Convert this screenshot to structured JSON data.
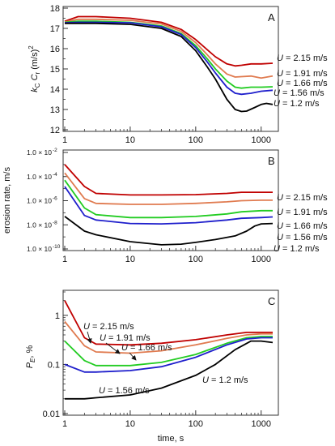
{
  "chart_data": [
    {
      "type": "line",
      "panel_label": "A",
      "ylabel": "k_c C_r (m/s)^2",
      "x_scale": "log",
      "xlim": [
        1,
        2000
      ],
      "ylim": [
        12,
        18
      ],
      "yticks": [
        12,
        13,
        14,
        15,
        16,
        17,
        18
      ],
      "series": [
        {
          "name": "U = 2.15 m/s",
          "color": "#c00000",
          "x": [
            1,
            1.6,
            3,
            10,
            30,
            60,
            100,
            150,
            200,
            300,
            400,
            500,
            700,
            1000,
            1500
          ],
          "y": [
            17.35,
            17.58,
            17.58,
            17.5,
            17.3,
            16.95,
            16.45,
            15.95,
            15.6,
            15.25,
            15.15,
            15.18,
            15.25,
            15.25,
            15.28
          ]
        },
        {
          "name": "U = 1.91 m/s",
          "color": "#e07b50",
          "x": [
            1,
            1.6,
            3,
            10,
            30,
            60,
            100,
            150,
            200,
            300,
            400,
            500,
            700,
            1000,
            1500
          ],
          "y": [
            17.32,
            17.45,
            17.45,
            17.4,
            17.22,
            16.85,
            16.3,
            15.7,
            15.25,
            14.75,
            14.6,
            14.62,
            14.65,
            14.55,
            14.65
          ]
        },
        {
          "name": "U = 1.66 m/s",
          "color": "#22cc22",
          "x": [
            1,
            1.6,
            3,
            10,
            30,
            60,
            100,
            150,
            200,
            300,
            400,
            500,
            700,
            1000,
            1500
          ],
          "y": [
            17.3,
            17.35,
            17.35,
            17.3,
            17.12,
            16.75,
            16.15,
            15.5,
            15.0,
            14.4,
            14.1,
            14.05,
            14.1,
            14.1,
            14.12
          ]
        },
        {
          "name": "U = 1.56 m/s",
          "color": "#1f1fcc",
          "x": [
            1,
            1.6,
            3,
            10,
            30,
            60,
            100,
            150,
            200,
            300,
            400,
            500,
            700,
            1000,
            1500
          ],
          "y": [
            17.28,
            17.3,
            17.3,
            17.28,
            17.08,
            16.7,
            16.05,
            15.35,
            14.8,
            14.1,
            13.8,
            13.75,
            13.8,
            13.9,
            13.95
          ]
        },
        {
          "name": "U = 1.2 m/s",
          "color": "#000000",
          "x": [
            1,
            1.6,
            3,
            10,
            30,
            60,
            100,
            150,
            200,
            300,
            400,
            500,
            600,
            800,
            1000,
            1200,
            1500
          ],
          "y": [
            17.25,
            17.25,
            17.25,
            17.2,
            17.0,
            16.6,
            15.9,
            15.1,
            14.5,
            13.5,
            13.0,
            12.9,
            12.92,
            13.1,
            13.25,
            13.3,
            13.25
          ]
        }
      ]
    },
    {
      "type": "line",
      "panel_label": "B",
      "ylabel": "erosion rate, m/s",
      "x_scale": "log",
      "y_scale": "log",
      "xlim": [
        1,
        2000
      ],
      "ylim": [
        1e-10,
        0.01
      ],
      "ytick_labels": [
        "1.0 × 10",
        "1.0 × 10",
        "1.0 × 10",
        "1.0 × 10",
        "1.0 × 10"
      ],
      "ytick_exponents": [
        "-10",
        "-8",
        "-6",
        "-4",
        "-2"
      ],
      "series": [
        {
          "name": "U = 2.15 m/s",
          "color": "#c00000",
          "x": [
            1,
            2,
            3,
            10,
            30,
            100,
            300,
            500,
            1000,
            1500
          ],
          "y": [
            0.001,
            1.5e-05,
            4e-06,
            3e-06,
            3e-06,
            3.2e-06,
            4e-06,
            5e-06,
            5e-06,
            5e-06
          ]
        },
        {
          "name": "U = 1.91 m/s",
          "color": "#e07b50",
          "x": [
            1,
            2,
            3,
            10,
            30,
            100,
            300,
            500,
            1000,
            1500
          ],
          "y": [
            0.0002,
            1.5e-06,
            6e-07,
            5e-07,
            5e-07,
            6e-07,
            8e-07,
            1e-06,
            1.1e-06,
            1.1e-06
          ]
        },
        {
          "name": "U = 1.66 m/s",
          "color": "#22cc22",
          "x": [
            1,
            2,
            3,
            10,
            30,
            100,
            300,
            500,
            1000,
            1500
          ],
          "y": [
            5e-05,
            2.5e-07,
            7e-08,
            4e-08,
            4e-08,
            5e-08,
            8e-08,
            1.2e-07,
            1.5e-07,
            1.5e-07
          ]
        },
        {
          "name": "U = 1.56 m/s",
          "color": "#1f1fcc",
          "x": [
            1,
            2,
            3,
            10,
            30,
            100,
            300,
            500,
            1000,
            1500
          ],
          "y": [
            1.5e-05,
            6e-08,
            2.5e-08,
            1.3e-08,
            1.2e-08,
            1.5e-08,
            2.5e-08,
            3.5e-08,
            4e-08,
            4.5e-08
          ]
        },
        {
          "name": "U = 1.2 m/s",
          "color": "#000000",
          "x": [
            1,
            2,
            3,
            10,
            30,
            60,
            100,
            200,
            400,
            600,
            800,
            1000,
            1500
          ],
          "y": [
            5e-08,
            3e-09,
            1.5e-09,
            4e-10,
            2.2e-10,
            2.5e-10,
            3.5e-10,
            6e-10,
            1.2e-09,
            3e-09,
            8e-09,
            1.2e-08,
            1.3e-08
          ]
        }
      ]
    },
    {
      "type": "line",
      "panel_label": "C",
      "ylabel": "P_E, %",
      "xlabel": "time, s",
      "x_scale": "log",
      "y_scale": "log",
      "xlim": [
        1,
        2000
      ],
      "ylim": [
        0.01,
        3
      ],
      "yticks": [
        "0.01",
        "0.1",
        "1"
      ],
      "xticks": [
        "1",
        "10",
        "100",
        "1000"
      ],
      "series": [
        {
          "name": "U = 2.15 m/s",
          "color": "#c00000",
          "x": [
            1,
            2,
            3,
            10,
            30,
            100,
            300,
            600,
            1000,
            1500
          ],
          "y": [
            2.0,
            0.35,
            0.26,
            0.25,
            0.27,
            0.32,
            0.4,
            0.45,
            0.45,
            0.45
          ]
        },
        {
          "name": "U = 1.91 m/s",
          "color": "#e07b50",
          "x": [
            1,
            2,
            3,
            10,
            30,
            100,
            300,
            600,
            1000,
            1500
          ],
          "y": [
            0.75,
            0.24,
            0.18,
            0.17,
            0.19,
            0.25,
            0.34,
            0.4,
            0.42,
            0.42
          ]
        },
        {
          "name": "U = 1.66 m/s",
          "color": "#22cc22",
          "x": [
            1,
            2,
            3,
            10,
            30,
            100,
            300,
            600,
            1000,
            1500
          ],
          "y": [
            0.3,
            0.12,
            0.095,
            0.095,
            0.11,
            0.16,
            0.27,
            0.35,
            0.37,
            0.37
          ]
        },
        {
          "name": "U = 1.56 m/s",
          "color": "#1f1fcc",
          "x": [
            1,
            2,
            3,
            10,
            30,
            100,
            300,
            600,
            1000,
            1500
          ],
          "y": [
            0.1,
            0.07,
            0.07,
            0.075,
            0.09,
            0.14,
            0.25,
            0.33,
            0.35,
            0.35
          ]
        },
        {
          "name": "U = 1.2 m/s",
          "color": "#000000",
          "x": [
            1,
            2,
            3,
            10,
            30,
            100,
            200,
            400,
            700,
            1000,
            1500
          ],
          "y": [
            0.02,
            0.02,
            0.021,
            0.024,
            0.033,
            0.06,
            0.1,
            0.2,
            0.3,
            0.3,
            0.28
          ]
        }
      ],
      "annotations": [
        {
          "text": "U = 2.15 m/s"
        },
        {
          "text": "U = 1.91 m/s"
        },
        {
          "text": "U = 1.66 m/s"
        },
        {
          "text": "U = 1.56 m/s"
        },
        {
          "text": "U = 1.2 m/s"
        }
      ]
    }
  ]
}
